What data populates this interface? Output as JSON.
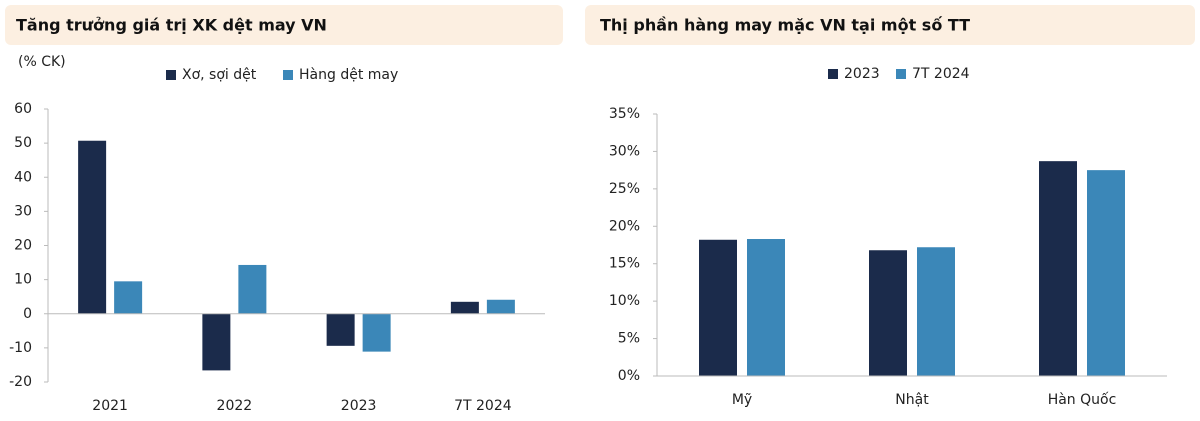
{
  "chart_data": [
    {
      "type": "bar",
      "title": "Tăng trưởng giá trị XK dệt may VN",
      "y_label": "(% CK)",
      "categories": [
        "2021",
        "2022",
        "2023",
        "7T 2024"
      ],
      "series": [
        {
          "name": "Xơ, sợi dệt",
          "color": "#1b2b4b",
          "values": [
            50.7,
            -16.6,
            -9.4,
            3.5
          ]
        },
        {
          "name": "Hàng dệt may",
          "color": "#3b87b8",
          "values": [
            9.5,
            14.3,
            -11.1,
            4.1
          ]
        }
      ],
      "ylim": [
        -20,
        60
      ],
      "yticks": [
        -20,
        -10,
        0,
        10,
        20,
        30,
        40,
        50,
        60
      ],
      "grid": false
    },
    {
      "type": "bar",
      "title": "Thị phần hàng may mặc VN tại một số TT",
      "categories": [
        "Mỹ",
        "Nhật",
        "Hàn Quốc"
      ],
      "series": [
        {
          "name": "2023",
          "color": "#1b2b4b",
          "values": [
            18.2,
            16.8,
            28.7
          ]
        },
        {
          "name": "7T 2024",
          "color": "#3b87b8",
          "values": [
            18.3,
            17.2,
            27.5
          ]
        }
      ],
      "ylim": [
        0,
        35
      ],
      "yticks": [
        {
          "value": 0,
          "label": "0%"
        },
        {
          "value": 5,
          "label": "5%"
        },
        {
          "value": 10,
          "label": "10%"
        },
        {
          "value": 15,
          "label": "15%"
        },
        {
          "value": 20,
          "label": "20%"
        },
        {
          "value": 25,
          "label": "25%"
        },
        {
          "value": 30,
          "label": "30%"
        },
        {
          "value": 35,
          "label": "35%"
        }
      ],
      "grid": false
    }
  ]
}
